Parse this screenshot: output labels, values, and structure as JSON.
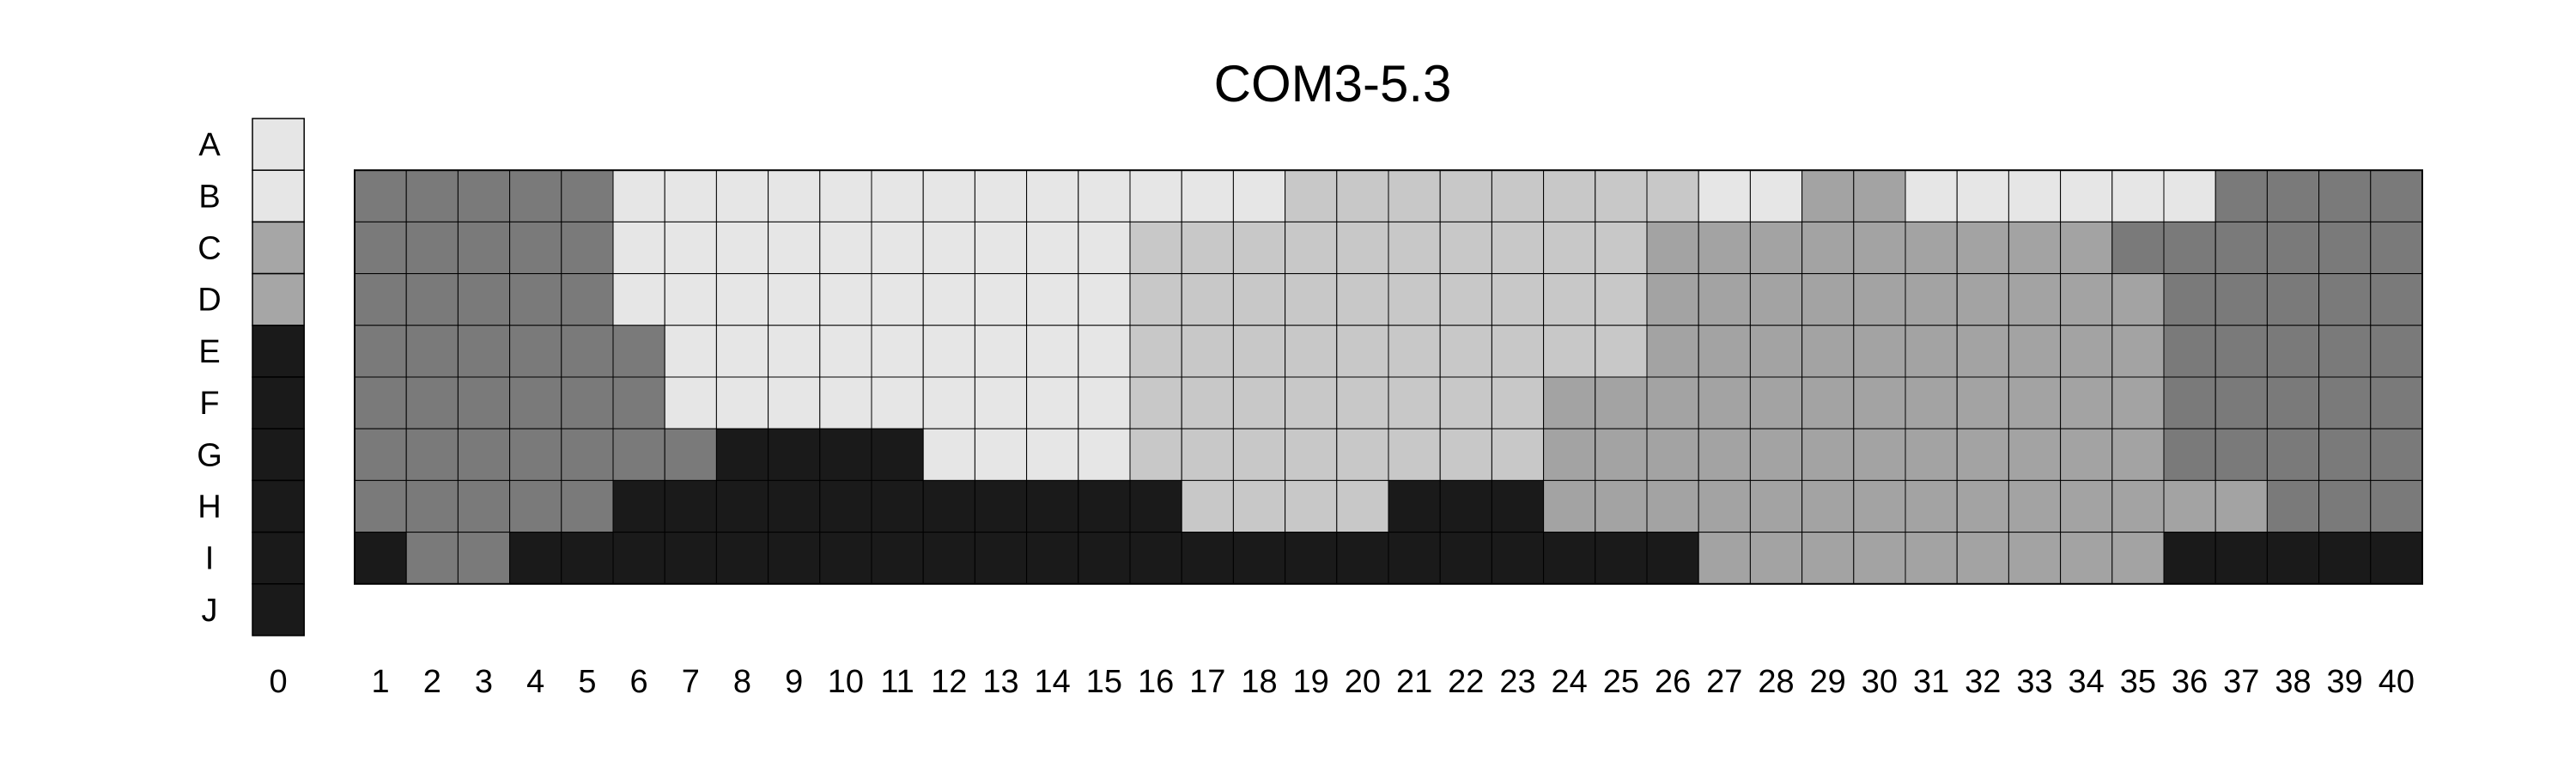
{
  "chart_data": {
    "type": "heatmap",
    "title": "COM3-5.3",
    "rows": [
      "A",
      "B",
      "C",
      "D",
      "E",
      "F",
      "G",
      "H",
      "I",
      "J"
    ],
    "reference_column": {
      "label": "0",
      "values": [
        "A",
        "B",
        "C",
        "C",
        "D",
        "D",
        "D",
        "D",
        "D",
        "D"
      ]
    },
    "columns": [
      "1",
      "2",
      "3",
      "4",
      "5",
      "6",
      "7",
      "8",
      "9",
      "10",
      "11",
      "12",
      "13",
      "14",
      "15",
      "16",
      "17",
      "18",
      "19",
      "20",
      "21",
      "22",
      "23",
      "24",
      "25",
      "26",
      "27",
      "28",
      "29",
      "30",
      "31",
      "32",
      "33",
      "34",
      "35",
      "36",
      "37",
      "38",
      "39",
      "40"
    ],
    "grid_rows": [
      "B",
      "C",
      "D",
      "E",
      "F",
      "G",
      "H",
      "I"
    ],
    "grid": [
      [
        "M",
        "M",
        "M",
        "M",
        "M",
        "L",
        "L",
        "L",
        "L",
        "L",
        "L",
        "L",
        "L",
        "L",
        "L",
        "L",
        "L",
        "L",
        "S",
        "S",
        "S",
        "S",
        "S",
        "S",
        "S",
        "S",
        "L",
        "L",
        "G",
        "G",
        "L",
        "L",
        "L",
        "L",
        "L",
        "L",
        "M",
        "M",
        "M",
        "M"
      ],
      [
        "M",
        "M",
        "M",
        "M",
        "M",
        "L",
        "L",
        "L",
        "L",
        "L",
        "L",
        "L",
        "L",
        "L",
        "L",
        "S",
        "S",
        "S",
        "S",
        "S",
        "S",
        "S",
        "S",
        "S",
        "S",
        "G",
        "G",
        "G",
        "G",
        "G",
        "G",
        "G",
        "G",
        "G",
        "M",
        "M",
        "M",
        "M",
        "M",
        "M"
      ],
      [
        "M",
        "M",
        "M",
        "M",
        "M",
        "L",
        "L",
        "L",
        "L",
        "L",
        "L",
        "L",
        "L",
        "L",
        "L",
        "S",
        "S",
        "S",
        "S",
        "S",
        "S",
        "S",
        "S",
        "S",
        "S",
        "G",
        "G",
        "G",
        "G",
        "G",
        "G",
        "G",
        "G",
        "G",
        "G",
        "M",
        "M",
        "M",
        "M",
        "M"
      ],
      [
        "M",
        "M",
        "M",
        "M",
        "M",
        "M",
        "L",
        "L",
        "L",
        "L",
        "L",
        "L",
        "L",
        "L",
        "L",
        "S",
        "S",
        "S",
        "S",
        "S",
        "S",
        "S",
        "S",
        "S",
        "S",
        "G",
        "G",
        "G",
        "G",
        "G",
        "G",
        "G",
        "G",
        "G",
        "G",
        "M",
        "M",
        "M",
        "M",
        "M"
      ],
      [
        "M",
        "M",
        "M",
        "M",
        "M",
        "M",
        "L",
        "L",
        "L",
        "L",
        "L",
        "L",
        "L",
        "L",
        "L",
        "S",
        "S",
        "S",
        "S",
        "S",
        "S",
        "S",
        "S",
        "G",
        "G",
        "G",
        "G",
        "G",
        "G",
        "G",
        "G",
        "G",
        "G",
        "G",
        "G",
        "M",
        "M",
        "M",
        "M",
        "M"
      ],
      [
        "M",
        "M",
        "M",
        "M",
        "M",
        "M",
        "M",
        "K",
        "K",
        "K",
        "K",
        "L",
        "L",
        "L",
        "L",
        "S",
        "S",
        "S",
        "S",
        "S",
        "S",
        "S",
        "S",
        "G",
        "G",
        "G",
        "G",
        "G",
        "G",
        "G",
        "G",
        "G",
        "G",
        "G",
        "G",
        "M",
        "M",
        "M",
        "M",
        "M"
      ],
      [
        "M",
        "M",
        "M",
        "M",
        "M",
        "K",
        "K",
        "K",
        "K",
        "K",
        "K",
        "K",
        "K",
        "K",
        "K",
        "K",
        "S",
        "S",
        "S",
        "S",
        "K",
        "K",
        "K",
        "G",
        "G",
        "G",
        "G",
        "G",
        "G",
        "G",
        "G",
        "G",
        "G",
        "G",
        "G",
        "G",
        "G",
        "M",
        "M",
        "M"
      ],
      [
        "K",
        "M",
        "M",
        "K",
        "K",
        "K",
        "K",
        "K",
        "K",
        "K",
        "K",
        "K",
        "K",
        "K",
        "K",
        "K",
        "K",
        "K",
        "K",
        "K",
        "K",
        "K",
        "K",
        "K",
        "K",
        "K",
        "G",
        "G",
        "G",
        "G",
        "G",
        "G",
        "G",
        "G",
        "G",
        "K",
        "K",
        "K",
        "K",
        "K"
      ]
    ]
  },
  "palette": {
    "A": "#e6e6e6",
    "B": "#e6e6e6",
    "C": "#a6a6a6",
    "D": "#1a1a1a",
    "L": "#e6e6e6",
    "S": "#c8c8c8",
    "G": "#a3a3a3",
    "M": "#7a7a7a",
    "K": "#1a1a1a"
  }
}
